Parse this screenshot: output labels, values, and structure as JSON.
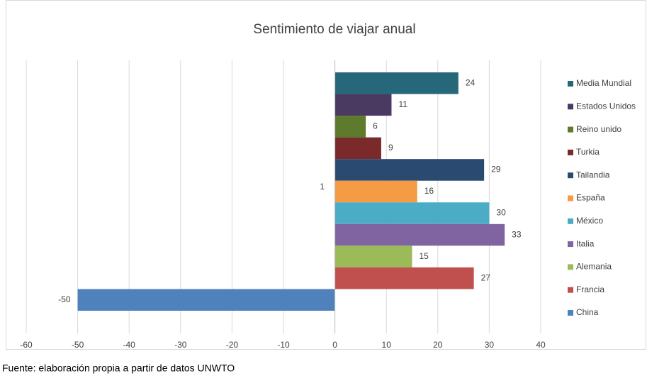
{
  "chart_data": {
    "type": "bar",
    "orientation": "horizontal",
    "title": "Sentimiento de viajar anual",
    "series": [
      {
        "name": "Media Mundial",
        "color": "#26687a",
        "values": [
          24
        ]
      },
      {
        "name": "Estados Unidos",
        "color": "#4a3a62",
        "values": [
          11
        ]
      },
      {
        "name": "Reino unido",
        "color": "#5e7a2c",
        "values": [
          6
        ]
      },
      {
        "name": "Turkia",
        "color": "#7a2a2a",
        "values": [
          9
        ]
      },
      {
        "name": "Tailandia",
        "color": "#2b4a72",
        "values": [
          29
        ]
      },
      {
        "name": "España",
        "color": "#f59a45",
        "values": [
          16
        ]
      },
      {
        "name": "México",
        "color": "#4bacc6",
        "values": [
          30
        ]
      },
      {
        "name": "Italia",
        "color": "#8064a2",
        "values": [
          33
        ]
      },
      {
        "name": "Alemania",
        "color": "#9bbb59",
        "values": [
          15
        ]
      },
      {
        "name": "Francia",
        "color": "#c0504d",
        "values": [
          27
        ]
      },
      {
        "name": "China",
        "color": "#4f81bd",
        "values": [
          -50
        ]
      }
    ],
    "annotations": [
      "1"
    ],
    "xlim": [
      -60,
      40
    ],
    "xticks": [
      -60,
      -50,
      -40,
      -30,
      -20,
      -10,
      0,
      10,
      20,
      30,
      40
    ],
    "grid": true,
    "legend": "right"
  },
  "footer": "Fuente: elaboración propia a partir de datos UNWTO"
}
